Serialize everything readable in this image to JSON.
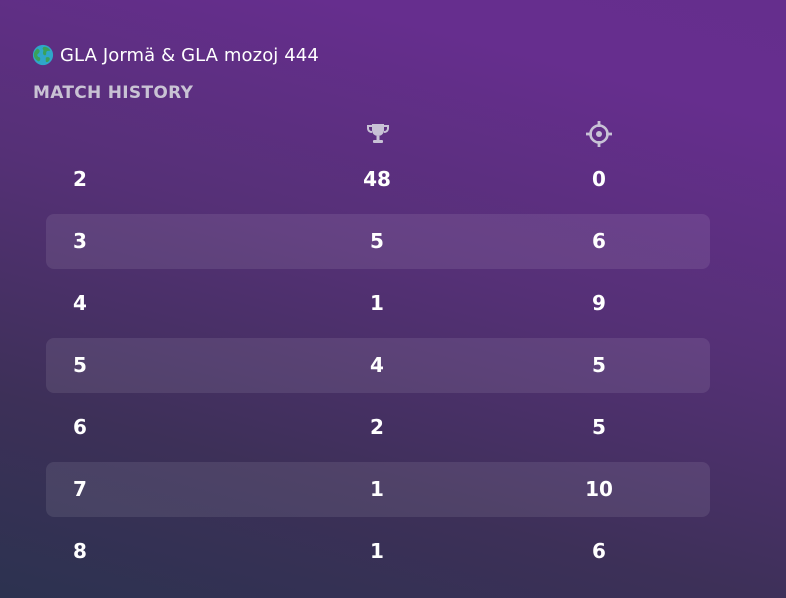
{
  "header": {
    "globe_icon": "globe-icon",
    "title": "GLA Jormä & GLA mozoj 444"
  },
  "section": {
    "title": "MATCH HISTORY"
  },
  "columns": [
    {
      "icon": "trophy-icon"
    },
    {
      "icon": "crosshair-icon"
    }
  ],
  "rows": [
    {
      "rank": "2",
      "wins": "48",
      "kills": "0"
    },
    {
      "rank": "3",
      "wins": "5",
      "kills": "6"
    },
    {
      "rank": "4",
      "wins": "1",
      "kills": "9"
    },
    {
      "rank": "5",
      "wins": "4",
      "kills": "5"
    },
    {
      "rank": "6",
      "wins": "2",
      "kills": "5"
    },
    {
      "rank": "7",
      "wins": "1",
      "kills": "10"
    },
    {
      "rank": "8",
      "wins": "1",
      "kills": "6"
    }
  ],
  "colors": {
    "background_start": "#2c3250",
    "background_end": "#662e8e",
    "subtitle": "#c9c3d4",
    "icon": "#c8c2d6"
  }
}
